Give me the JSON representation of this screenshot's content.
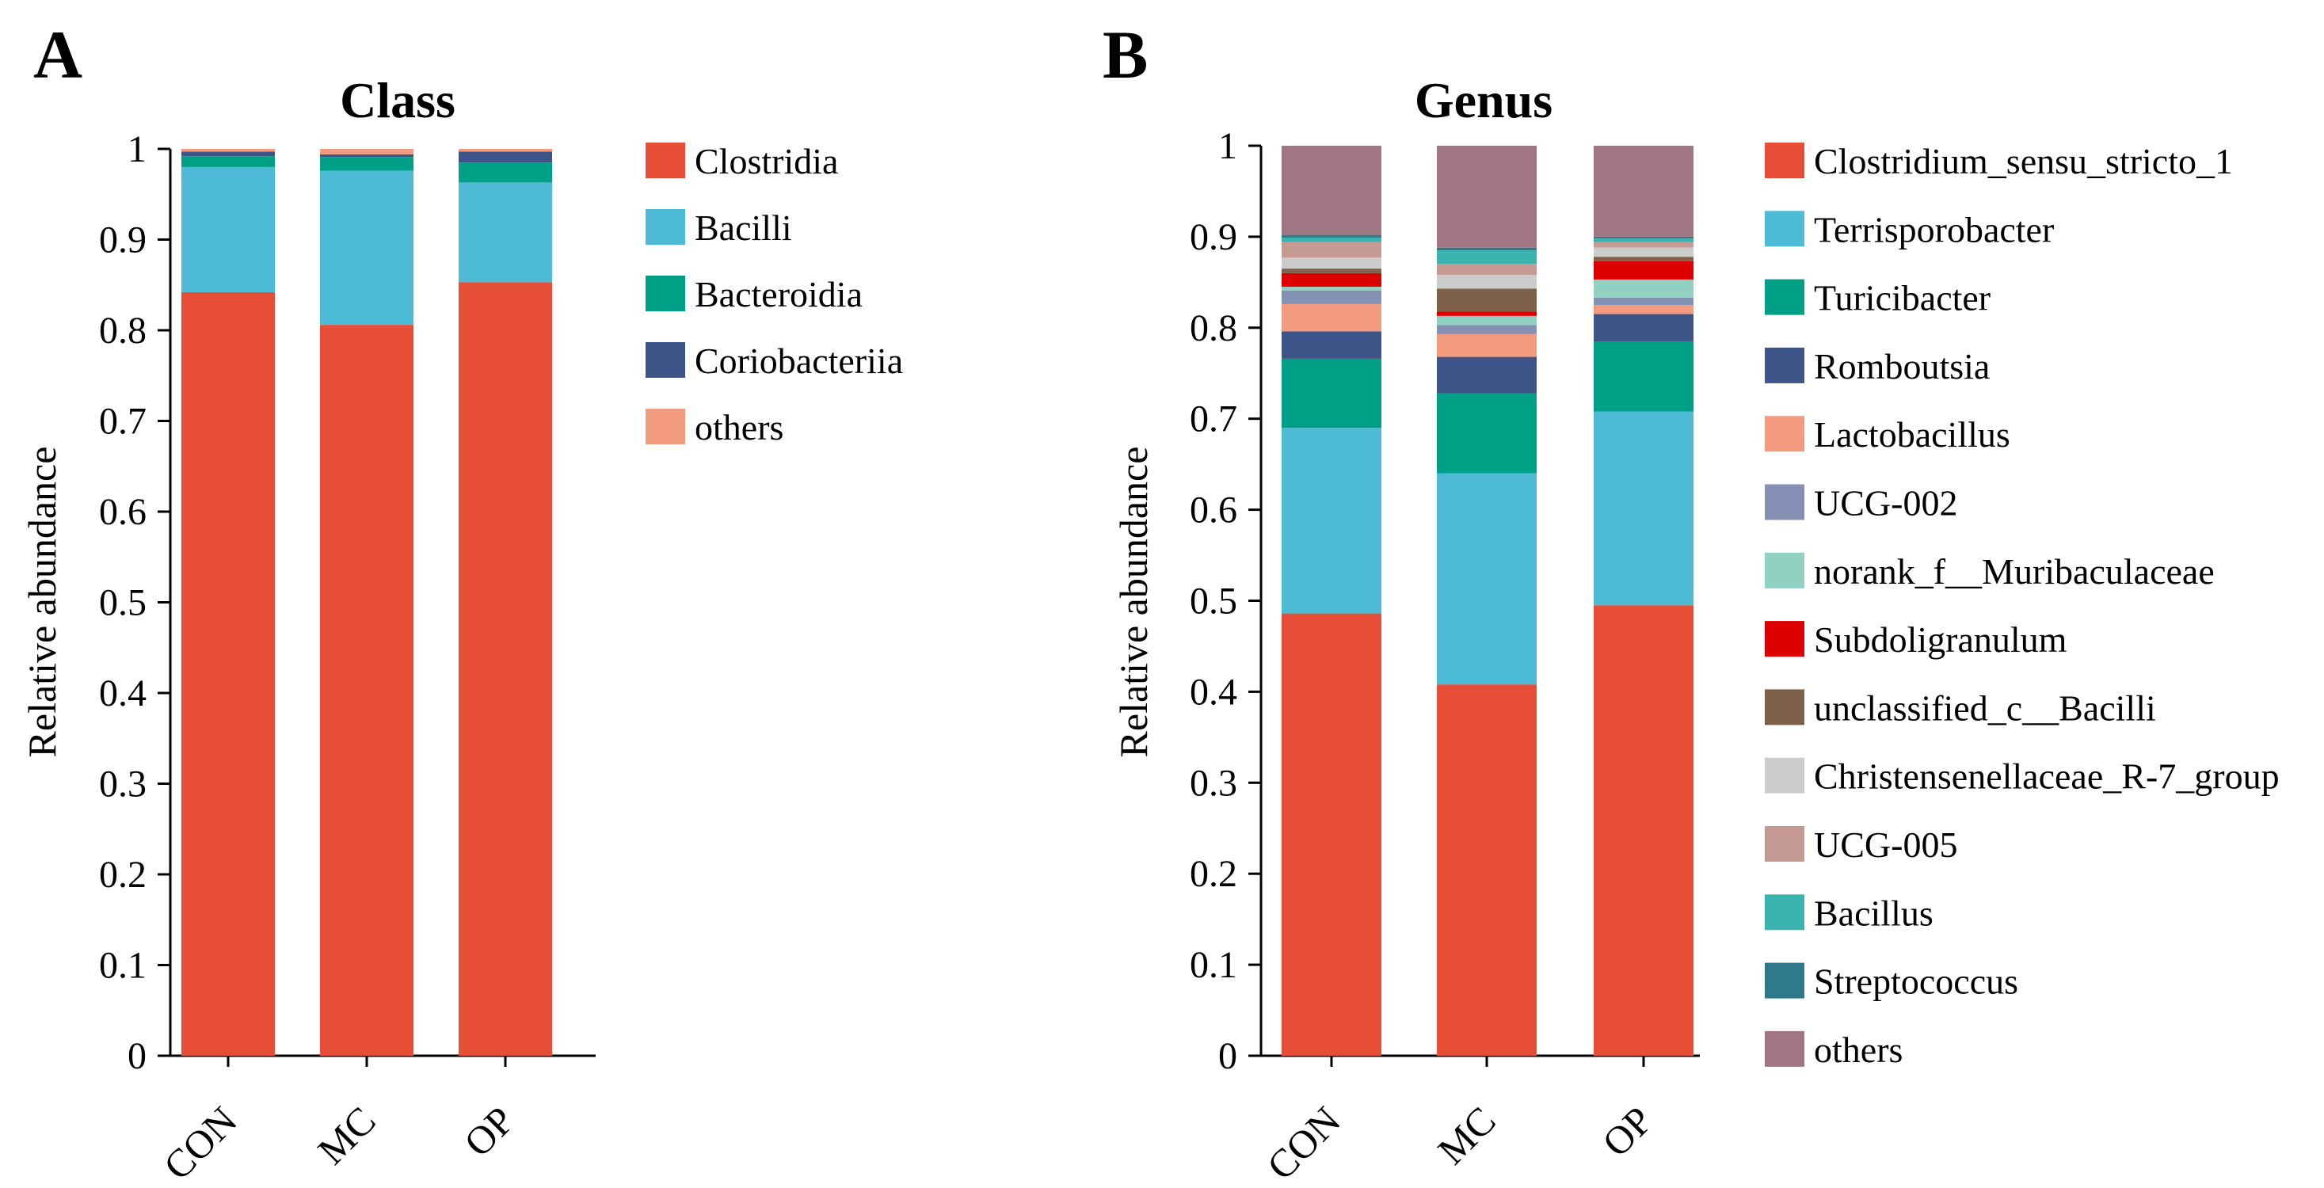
{
  "panels": [
    {
      "id": "A",
      "letter": "A"
    },
    {
      "id": "B",
      "letter": "B"
    }
  ],
  "chart_data": [
    {
      "type": "stacked-bar",
      "panel": "A",
      "title": "Class",
      "xlabel": "",
      "ylabel": "Relative abundance",
      "ylim": [
        0,
        1
      ],
      "yticks": [
        0,
        0.1,
        0.2,
        0.3,
        0.4,
        0.5,
        0.6,
        0.7,
        0.8,
        0.9,
        1
      ],
      "ytick_labels": [
        "0",
        "0.1",
        "0.2",
        "0.3",
        "0.4",
        "0.5",
        "0.6",
        "0.7",
        "0.8",
        "0.9",
        "1"
      ],
      "categories": [
        "CON",
        "MC",
        "OP"
      ],
      "legend_position": "right",
      "series": [
        {
          "name": "Clostridia",
          "color": "#E64E38",
          "values": [
            0.842,
            0.806,
            0.853
          ]
        },
        {
          "name": "Bacilli",
          "color": "#4DBBD5",
          "values": [
            0.138,
            0.17,
            0.11
          ]
        },
        {
          "name": "Bacteroidia",
          "color": "#00A087",
          "values": [
            0.012,
            0.015,
            0.022
          ]
        },
        {
          "name": "Coriobacteriia",
          "color": "#3C5488",
          "values": [
            0.005,
            0.003,
            0.012
          ]
        },
        {
          "name": "others",
          "color": "#F39B7F",
          "values": [
            0.003,
            0.006,
            0.003
          ]
        }
      ]
    },
    {
      "type": "stacked-bar",
      "panel": "B",
      "title": "Genus",
      "xlabel": "",
      "ylabel": "Relative abundance",
      "ylim": [
        0,
        1
      ],
      "yticks": [
        0,
        0.1,
        0.2,
        0.3,
        0.4,
        0.5,
        0.6,
        0.7,
        0.8,
        0.9,
        1
      ],
      "ytick_labels": [
        "0",
        "0.1",
        "0.2",
        "0.3",
        "0.4",
        "0.5",
        "0.6",
        "0.7",
        "0.8",
        "0.9",
        "1"
      ],
      "categories": [
        "CON",
        "MC",
        "OP"
      ],
      "legend_position": "right",
      "series": [
        {
          "name": "Clostridium_sensu_stricto_1",
          "color": "#E64E38",
          "values": [
            0.486,
            0.408,
            0.495
          ]
        },
        {
          "name": "Terrisporobacter",
          "color": "#4DBBD5",
          "values": [
            0.204,
            0.232,
            0.213
          ]
        },
        {
          "name": "Turicibacter",
          "color": "#00A087",
          "values": [
            0.076,
            0.088,
            0.077
          ]
        },
        {
          "name": "Romboutsia",
          "color": "#3C5488",
          "values": [
            0.03,
            0.04,
            0.03
          ]
        },
        {
          "name": "Lactobacillus",
          "color": "#F39B7F",
          "values": [
            0.03,
            0.025,
            0.01
          ]
        },
        {
          "name": "UCG-002",
          "color": "#8491B4",
          "values": [
            0.015,
            0.01,
            0.008
          ]
        },
        {
          "name": "norank_f__Muribaculaceae",
          "color": "#91D1C2",
          "values": [
            0.004,
            0.01,
            0.02
          ]
        },
        {
          "name": "Subdoligranulum",
          "color": "#DC0000",
          "values": [
            0.015,
            0.005,
            0.02
          ]
        },
        {
          "name": "unclassified_c__Bacilli",
          "color": "#7E6148",
          "values": [
            0.005,
            0.025,
            0.005
          ]
        },
        {
          "name": "Christensenellaceae_R-7_group",
          "color": "#CCCCCC",
          "values": [
            0.012,
            0.015,
            0.01
          ]
        },
        {
          "name": "UCG-005",
          "color": "#C49A92",
          "values": [
            0.017,
            0.012,
            0.006
          ]
        },
        {
          "name": "Bacillus",
          "color": "#3BB3AF",
          "values": [
            0.005,
            0.015,
            0.004
          ]
        },
        {
          "name": "Streptococcus",
          "color": "#2E7A8C",
          "values": [
            0.003,
            0.003,
            0.002
          ]
        },
        {
          "name": "others",
          "color": "#A07682",
          "values": [
            0.098,
            0.112,
            0.1
          ]
        }
      ]
    }
  ]
}
